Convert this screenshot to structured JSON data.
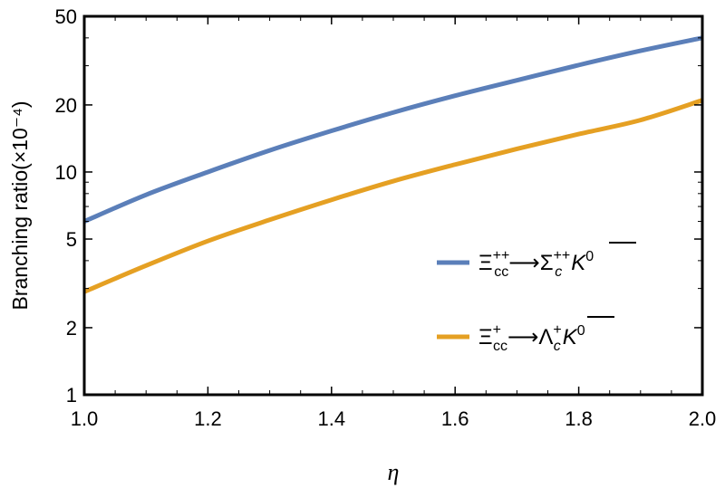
{
  "chart_data": {
    "type": "line",
    "xlabel": "η",
    "ylabel": "Branching ratio(×10⁻⁴)",
    "xlim": [
      1.0,
      2.0
    ],
    "ylim": [
      1,
      50
    ],
    "yscale": "log",
    "xticks": [
      "1.0",
      "1.2",
      "1.4",
      "1.6",
      "1.8",
      "2.0"
    ],
    "yticks": [
      "1",
      "2",
      "5",
      "10",
      "20",
      "50"
    ],
    "legend_position": "right",
    "series": [
      {
        "name": "Ξcc++→Σc++K0",
        "color": "#5b7fb9",
        "x": [
          1.0,
          1.1,
          1.2,
          1.3,
          1.4,
          1.5,
          1.6,
          1.7,
          1.8,
          1.9,
          2.0
        ],
        "y": [
          6.0,
          7.9,
          10.0,
          12.5,
          15.3,
          18.5,
          22.0,
          25.8,
          30.2,
          35.0,
          40.0
        ]
      },
      {
        "name": "Ξcc+→Λc+K0",
        "color": "#e5a023",
        "x": [
          1.0,
          1.1,
          1.2,
          1.3,
          1.4,
          1.5,
          1.6,
          1.7,
          1.8,
          1.9,
          2.0
        ],
        "y": [
          2.9,
          3.8,
          4.9,
          6.1,
          7.5,
          9.1,
          10.8,
          12.7,
          14.8,
          17.1,
          21.0
        ]
      }
    ]
  }
}
